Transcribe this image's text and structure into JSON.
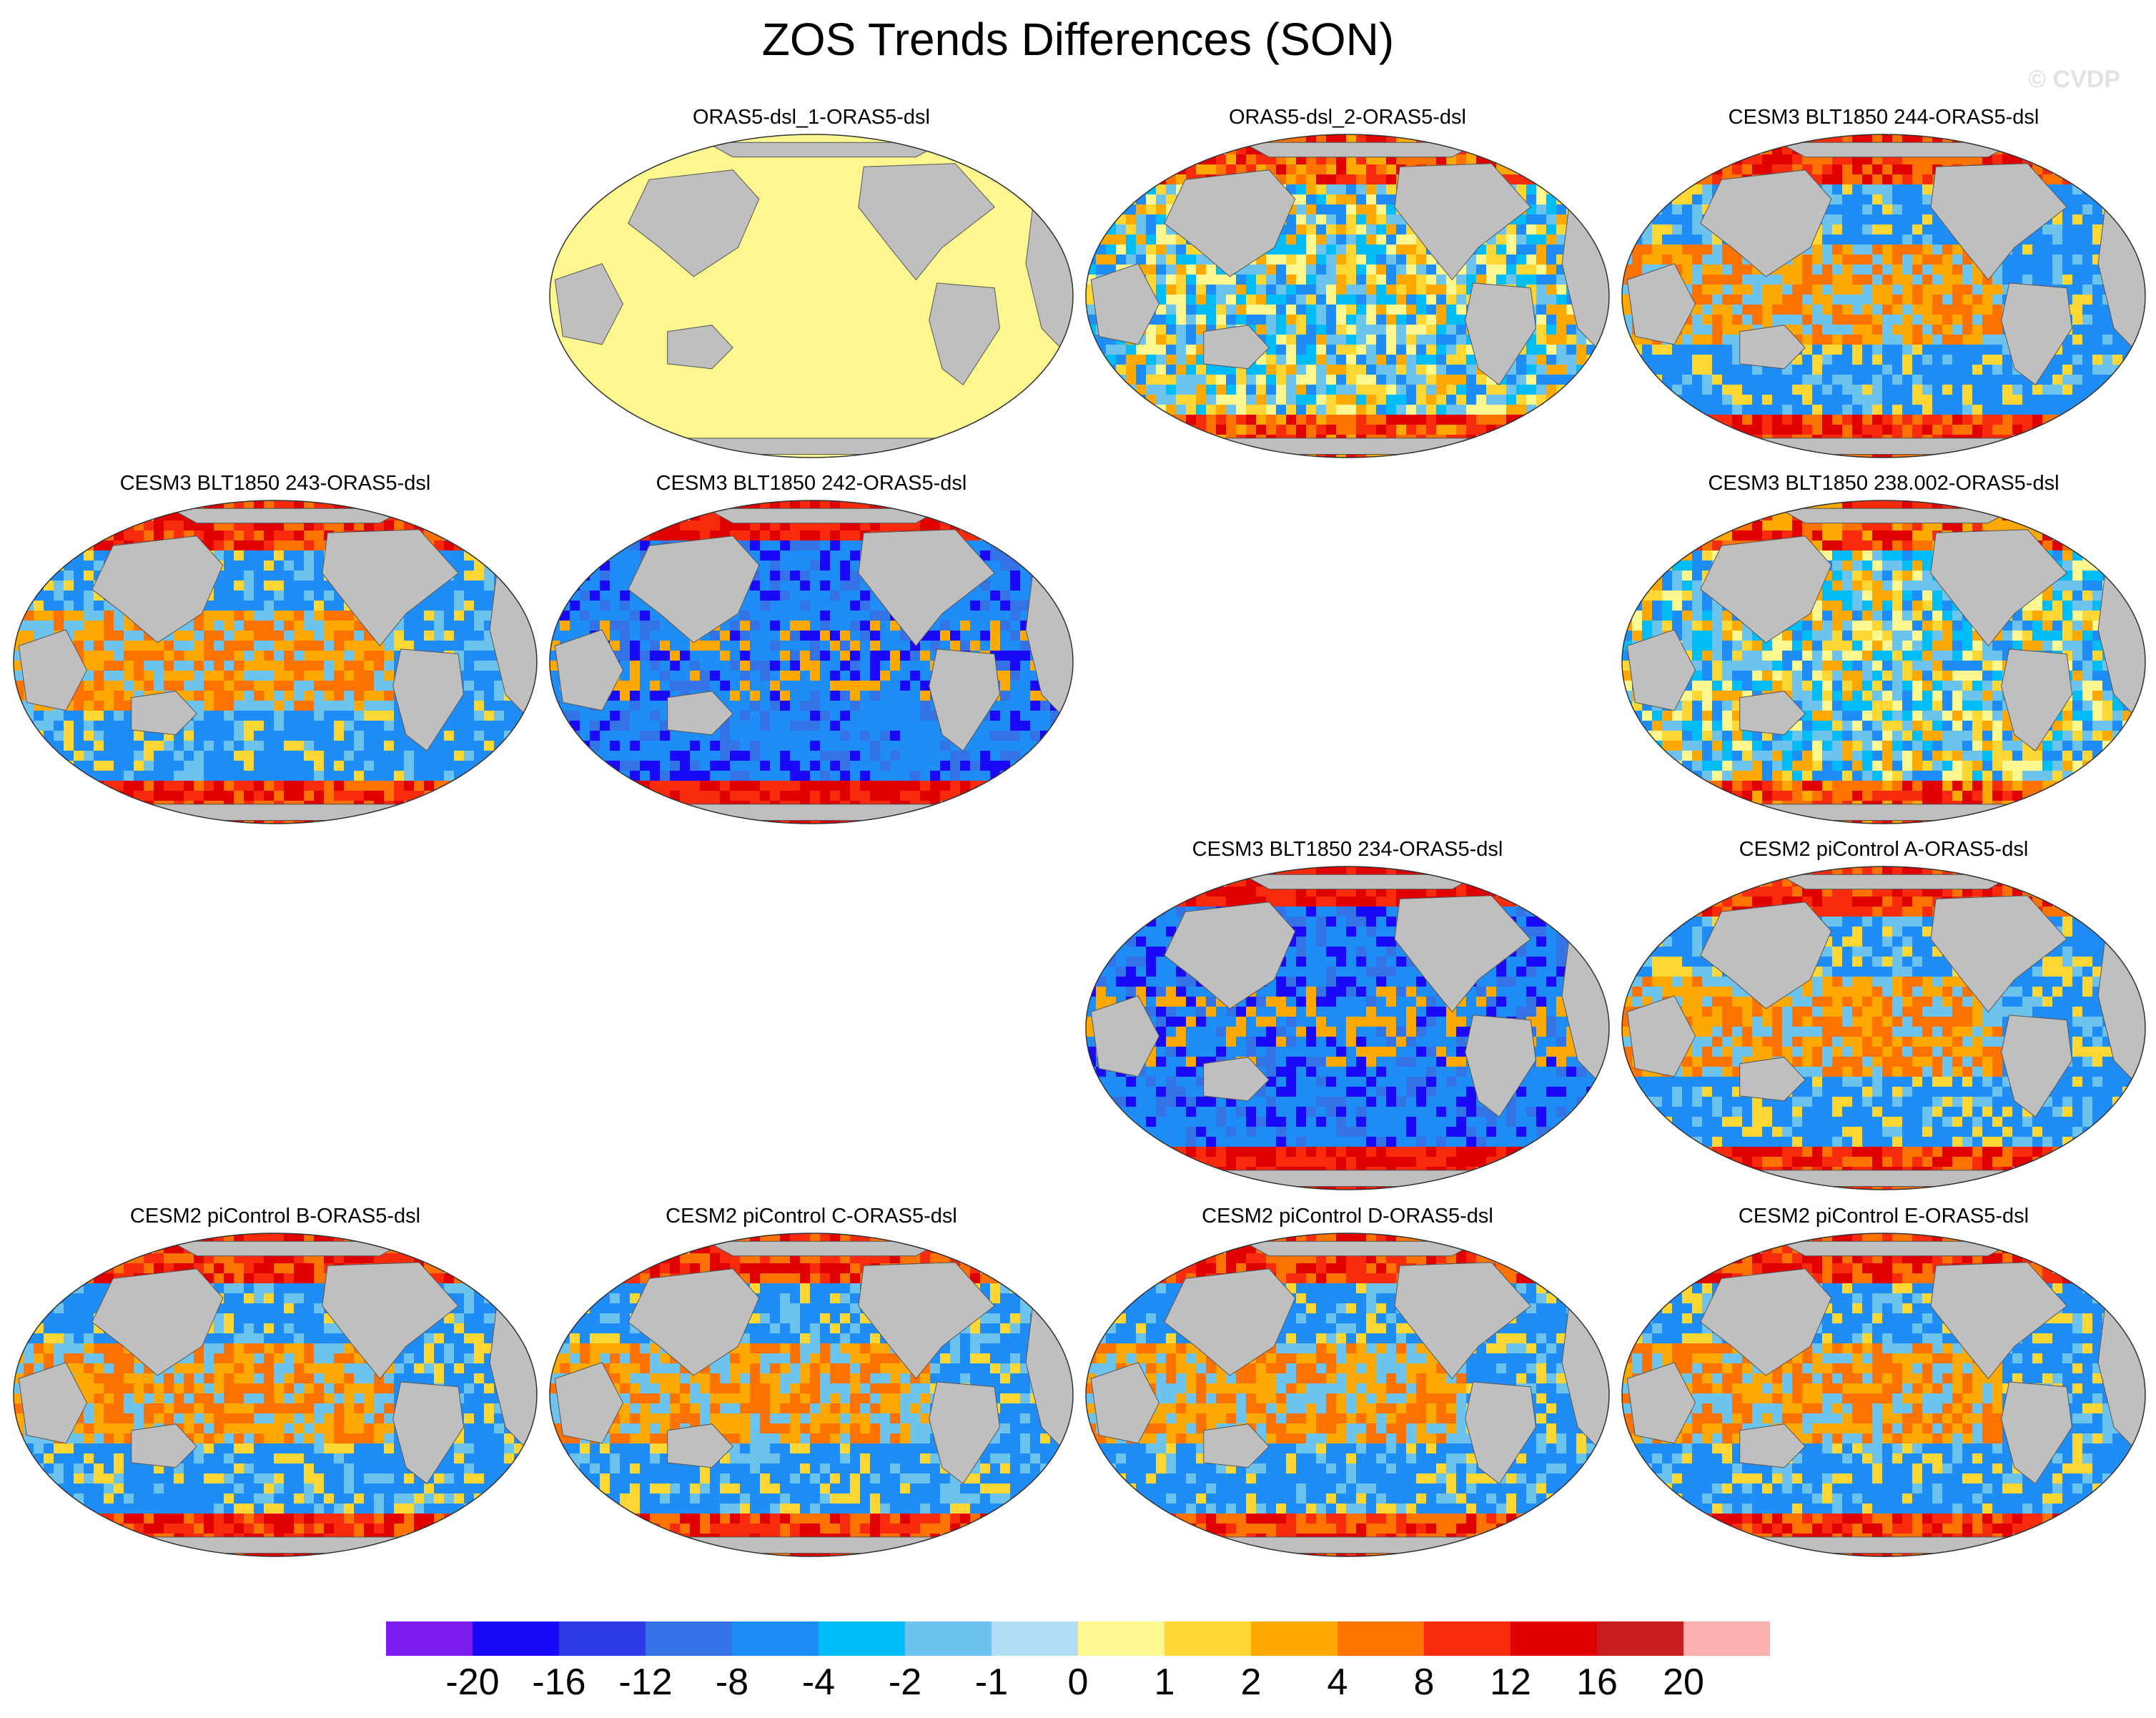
{
  "title": "ZOS Trends Differences (SON)",
  "watermark": "© CVDP",
  "panels": [
    {
      "title": "ORAS5-dsl_1-ORAS5-dsl",
      "pattern": "uniform"
    },
    {
      "title": "ORAS5-dsl_2-ORAS5-dsl",
      "pattern": "mixed"
    },
    {
      "title": "CESM3 BLT1850 244-ORAS5-dsl",
      "pattern": "warm-tropics"
    },
    {
      "title": "CESM3 BLT1850 243-ORAS5-dsl",
      "pattern": "warm-tropics"
    },
    {
      "title": "CESM3 BLT1850 242-ORAS5-dsl",
      "pattern": "cool"
    },
    {
      "title": "CESM3 BLT1850 238.002-ORAS5-dsl",
      "pattern": "mixed"
    },
    {
      "title": "CESM3 BLT1850 234-ORAS5-dsl",
      "pattern": "cool"
    },
    {
      "title": "CESM2 piControl A-ORAS5-dsl",
      "pattern": "warm-tropics"
    },
    {
      "title": "CESM2 piControl B-ORAS5-dsl",
      "pattern": "warm-tropics"
    },
    {
      "title": "CESM2 piControl C-ORAS5-dsl",
      "pattern": "warm-tropics"
    },
    {
      "title": "CESM2 piControl D-ORAS5-dsl",
      "pattern": "warm-tropics"
    },
    {
      "title": "CESM2 piControl E-ORAS5-dsl",
      "pattern": "warm-tropics"
    }
  ],
  "colorbar": {
    "colors": [
      "#7d1cef",
      "#1a08f8",
      "#2b3ae4",
      "#3473e6",
      "#1e8df8",
      "#00bdf8",
      "#6cc4ee",
      "#b1dcf1",
      "#fdf78f",
      "#fed735",
      "#fda901",
      "#fd7201",
      "#f82b0c",
      "#e00000",
      "#c91c1c",
      "#fdb0b0"
    ],
    "labels": [
      "-20",
      "-16",
      "-12",
      "-8",
      "-4",
      "-2",
      "-1",
      "0",
      "1",
      "2",
      "4",
      "8",
      "12",
      "16",
      "20"
    ]
  },
  "land_color": "#bfbfbf",
  "zero_color": "#fdf78f"
}
